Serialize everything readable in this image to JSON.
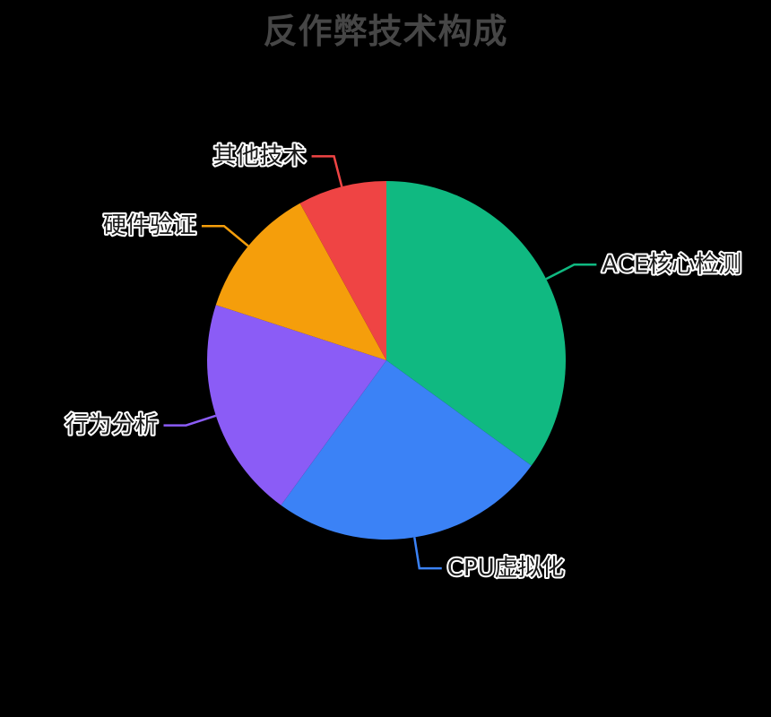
{
  "title": "反作弊技术构成",
  "colors": {
    "background": "#000000",
    "title_text": "#464646",
    "label_text": "#1a1a1a",
    "label_outline": "#ffffff"
  },
  "chart_data": {
    "type": "pie",
    "title": "反作弊技术构成",
    "unit": "percent",
    "start_angle": "top",
    "direction": "clockwise",
    "legend": "none",
    "labels_outside_with_leader_lines": true,
    "slices": [
      {
        "label": "ACE核心检测",
        "value": 35,
        "color": "#10B981"
      },
      {
        "label": "CPU虚拟化",
        "value": 25,
        "color": "#3B82F6"
      },
      {
        "label": "行为分析",
        "value": 20,
        "color": "#8B5CF6"
      },
      {
        "label": "硬件验证",
        "value": 12,
        "color": "#F59E0B"
      },
      {
        "label": "其他技术",
        "value": 8,
        "color": "#EF4444"
      }
    ]
  }
}
